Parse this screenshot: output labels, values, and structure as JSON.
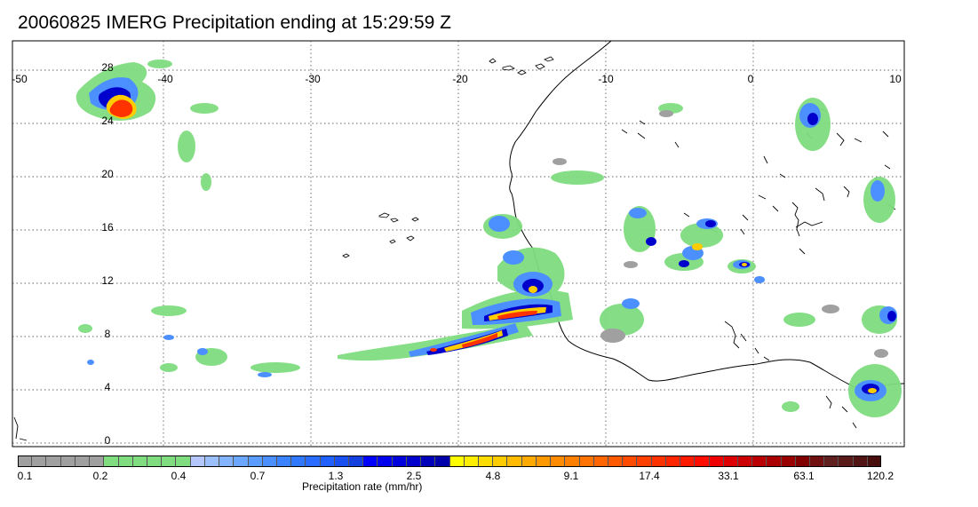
{
  "title": "20060825 IMERG Precipitation ending at 15:29:59 Z",
  "map": {
    "lon_range": [
      -50,
      10
    ],
    "lat_range": [
      -0.5,
      30
    ],
    "lon_ticks": [
      "-50",
      "-40",
      "-30",
      "-20",
      "-10",
      "0",
      "10"
    ],
    "lat_ticks": [
      "28",
      "24",
      "20",
      "16",
      "12",
      "8",
      "4",
      "0"
    ],
    "grid": "dotted"
  },
  "colorbar": {
    "label": "Precipitation rate (mm/hr)",
    "tick_labels": [
      "0.1",
      "0.2",
      "0.4",
      "0.7",
      "1.3",
      "2.5",
      "4.8",
      "9.1",
      "17.4",
      "33.1",
      "63.1",
      "120.2"
    ],
    "colors": [
      "#a0a0a0",
      "#a0a0a0",
      "#a0a0a0",
      "#a0a0a0",
      "#a0a0a0",
      "#a0a0a0",
      "#7fdd7f",
      "#7fdd7f",
      "#7fdd7f",
      "#7fdd7f",
      "#7fdd7f",
      "#7fdd7f",
      "#b4c8ff",
      "#9cc0ff",
      "#84b4ff",
      "#6ca8ff",
      "#5a9cff",
      "#4c90ff",
      "#3c84ff",
      "#3078ff",
      "#2a6cff",
      "#2060ff",
      "#1a50f0",
      "#1440e0",
      "#0000ff",
      "#0000ee",
      "#0000dd",
      "#0000cc",
      "#0000bb",
      "#0000aa",
      "#ffff00",
      "#ffee00",
      "#ffdd00",
      "#ffcc00",
      "#ffbb00",
      "#ffaa00",
      "#ff9900",
      "#ff8c00",
      "#ff8000",
      "#ff7300",
      "#ff6600",
      "#ff5a00",
      "#ff4c00",
      "#ff4000",
      "#ff3300",
      "#ff2600",
      "#ff1a00",
      "#ff0d00",
      "#ee0000",
      "#dd0000",
      "#cc0000",
      "#bb0000",
      "#aa0000",
      "#990000",
      "#800000",
      "#701010",
      "#602020",
      "#5a1a1a",
      "#501414",
      "#480e0e"
    ]
  }
}
